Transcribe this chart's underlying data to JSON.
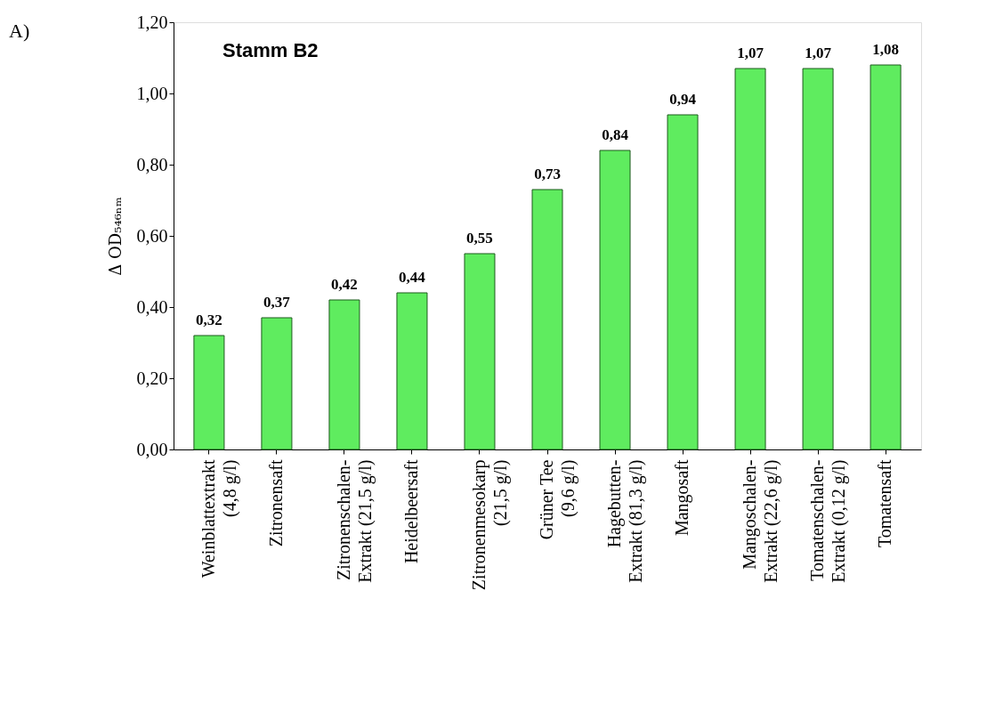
{
  "chart_data": {
    "type": "bar",
    "title": "Stamm B2",
    "ylabel": "Δ OD₅₄₆ₙₘ",
    "annotations": [
      "A)"
    ],
    "categories": [
      "Weinblattextrakt\n(4,8 g/l)",
      "Zitronensaft",
      "Zitronenschalen-\nExtrakt (21,5 g/l)",
      "Heidelbeersaft",
      "Zitronenmesokarp\n(21,5 g/l)",
      "Grüner Tee\n(9,6 g/l)",
      "Hagebutten-\nExtrakt (81,3 g/l)",
      "Mangosaft",
      "Mangoschalen-\nExtrakt (22,6 g/l)",
      "Tomatenschalen-\nExtrakt (0,12 g/l)",
      "Tomatensaft"
    ],
    "values": [
      0.32,
      0.37,
      0.42,
      0.44,
      0.55,
      0.73,
      0.84,
      0.94,
      1.07,
      1.07,
      1.08
    ],
    "value_labels": [
      "0,32",
      "0,37",
      "0,42",
      "0,44",
      "0,55",
      "0,73",
      "0,84",
      "0,94",
      "1,07",
      "1,07",
      "1,08"
    ],
    "color": "#5fec5f",
    "ylim": [
      0,
      1.2
    ],
    "yticks": [
      {
        "value": 0,
        "label": "0,00"
      },
      {
        "value": 0.2,
        "label": "0,20"
      },
      {
        "value": 0.4,
        "label": "0,40"
      },
      {
        "value": 0.6,
        "label": "0,60"
      },
      {
        "value": 0.8,
        "label": "0,80"
      },
      {
        "value": 1.0,
        "label": "1,00"
      },
      {
        "value": 1.2,
        "label": "1,20"
      }
    ],
    "grid": false
  }
}
